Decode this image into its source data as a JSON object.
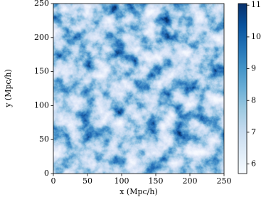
{
  "chart_data": {
    "type": "heatmap",
    "xlabel": "x (Mpc/h)",
    "ylabel": "y (Mpc/h)",
    "xlim": [
      0,
      250
    ],
    "ylim": [
      0,
      250
    ],
    "xticks": [
      0,
      50,
      100,
      150,
      200,
      250
    ],
    "yticks": [
      0,
      50,
      100,
      150,
      200,
      250
    ],
    "colormap": "Blues",
    "clim": [
      5.7,
      11.05
    ],
    "cticks": [
      6,
      7,
      8,
      9,
      10,
      11
    ]
  }
}
